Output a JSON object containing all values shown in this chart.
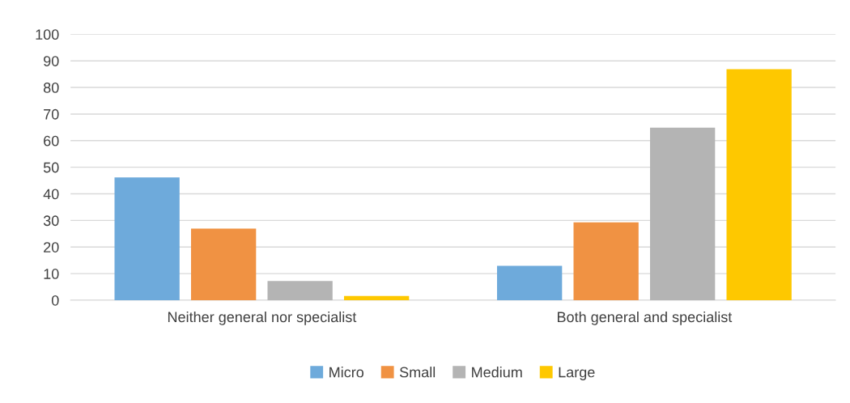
{
  "chart_data": {
    "type": "bar",
    "categories": [
      "Neither general nor specialist",
      "Both general and specialist"
    ],
    "series": [
      {
        "name": "Micro",
        "color": "#6eaadb",
        "values": [
          46.2,
          12.9
        ]
      },
      {
        "name": "Small",
        "color": "#f09243",
        "values": [
          26.9,
          29.3
        ]
      },
      {
        "name": "Medium",
        "color": "#b4b4b4",
        "values": [
          7.2,
          64.9
        ]
      },
      {
        "name": "Large",
        "color": "#fec800",
        "values": [
          1.6,
          86.9
        ]
      }
    ],
    "ylim": [
      0,
      100
    ],
    "yticks": [
      0,
      10,
      20,
      30,
      40,
      50,
      60,
      70,
      80,
      90,
      100
    ],
    "grid": "y",
    "legend": "bottom"
  }
}
